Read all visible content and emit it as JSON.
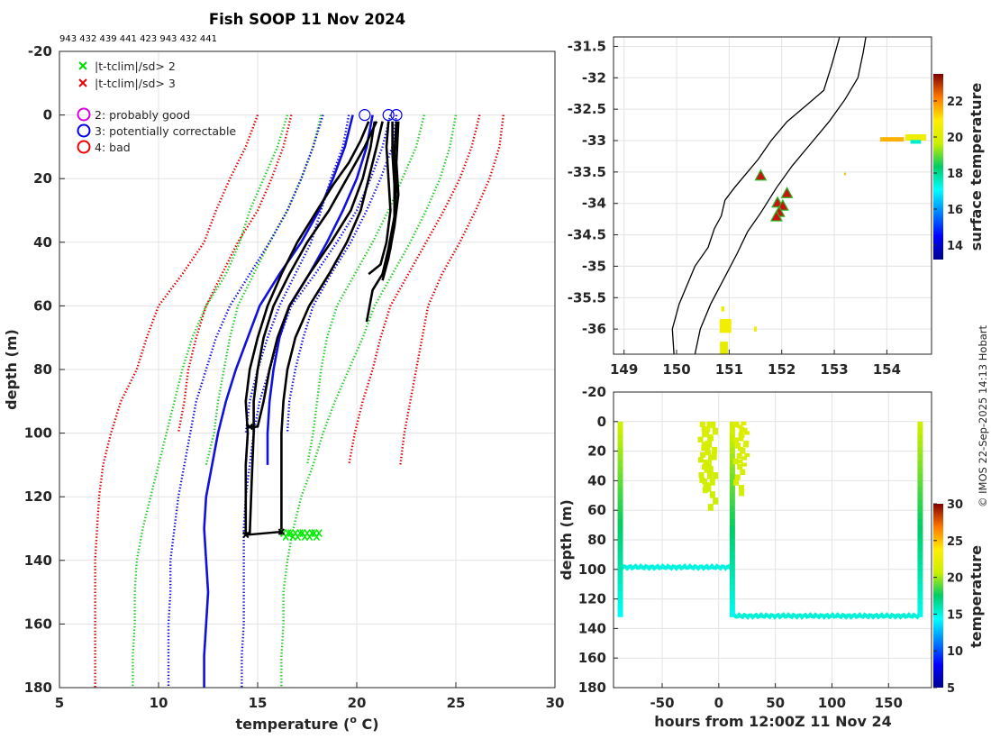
{
  "chart_data": [
    {
      "type": "line",
      "title": "Fish SOOP 11 Nov 2024",
      "subtitle": "943 432 439 441 423 943 432 441",
      "xlabel": "temperature (",
      "xlabel_sup": "o",
      "xlabel_end": " C)",
      "ylabel": "depth (m)",
      "xlim": [
        5,
        30
      ],
      "ylim": [
        -20,
        180
      ],
      "y_reversed": true,
      "xticks": [
        5,
        10,
        15,
        20,
        25,
        30
      ],
      "yticks": [
        -20,
        0,
        20,
        40,
        60,
        80,
        100,
        120,
        140,
        160,
        180
      ],
      "grid": true,
      "legend": [
        {
          "marker": "x",
          "color": "#00dd00",
          "label": "|t-tclim|/sd> 2"
        },
        {
          "marker": "x",
          "color": "#ee0000",
          "label": "|t-tclim|/sd> 3"
        },
        {
          "marker": "o",
          "color": "#dd00dd",
          "label": "2: probably good"
        },
        {
          "marker": "o",
          "color": "#0000ee",
          "label": "3: potentially correctable"
        },
        {
          "marker": "o",
          "color": "#ee0000",
          "label": "4: bad"
        }
      ],
      "climatology_depth": [
        0,
        10,
        20,
        30,
        40,
        50,
        60,
        70,
        80,
        90,
        100,
        110,
        120,
        130,
        140,
        150,
        160,
        170,
        180
      ],
      "climatology_series": [
        {
          "name": "clim -3sd A",
          "color": "#dd0000",
          "style": "dotted",
          "temps": [
            16.7,
            16.3,
            15.7,
            15.0,
            14.0,
            13.2,
            12.4,
            11.9,
            11.5,
            11.3,
            11.0
          ]
        },
        {
          "name": "clim -3sd B",
          "color": "#dd0000",
          "style": "dotted",
          "temps": [
            15.0,
            14.4,
            13.6,
            12.9,
            12.3,
            11.2,
            10.0,
            9.4,
            8.9,
            8.1,
            7.6,
            7.2,
            7.0,
            6.9,
            6.8,
            6.8,
            6.8,
            6.8,
            6.8
          ]
        },
        {
          "name": "clim -2sd A",
          "color": "#22cc22",
          "style": "dotted",
          "temps": [
            18.2,
            17.8,
            17.2,
            16.5,
            15.6,
            14.8,
            14.0,
            13.6,
            13.3,
            13.0,
            12.8,
            12.4
          ]
        },
        {
          "name": "clim -2sd B",
          "color": "#22cc22",
          "style": "dotted",
          "temps": [
            16.5,
            16.0,
            15.3,
            14.6,
            14.1,
            13.4,
            12.4,
            11.7,
            11.2,
            10.8,
            10.4,
            10.0,
            9.6,
            9.2,
            8.9,
            8.8,
            8.8,
            8.7,
            8.7
          ]
        },
        {
          "name": "clim -sd A",
          "color": "#1111dd",
          "style": "dotted",
          "temps": [
            19.6,
            19.3,
            18.7,
            18.2,
            17.7,
            16.9,
            16.1,
            15.5,
            15.0,
            14.6,
            14.4
          ]
        },
        {
          "name": "clim -sd B",
          "color": "#1111dd",
          "style": "dotted",
          "temps": [
            18.3,
            17.8,
            17.2,
            16.5,
            15.6,
            14.6,
            13.6,
            12.9,
            12.4,
            11.9,
            11.6,
            11.3,
            11.0,
            10.8,
            10.6,
            10.6,
            10.5,
            10.5,
            10.5
          ]
        },
        {
          "name": "clim mean A",
          "color": "#1111dd",
          "style": "solid",
          "temps": [
            20.8,
            20.5,
            20.0,
            19.3,
            18.5,
            17.6,
            16.6,
            16.1,
            15.8,
            15.6,
            15.5,
            15.5
          ]
        },
        {
          "name": "clim mean B",
          "color": "#1111dd",
          "style": "solid",
          "temps": [
            19.8,
            19.4,
            18.8,
            18.1,
            17.2,
            16.1,
            15.1,
            14.5,
            13.9,
            13.4,
            13.0,
            12.7,
            12.4,
            12.3,
            12.4,
            12.5,
            12.4,
            12.3,
            12.3
          ]
        },
        {
          "name": "clim +sd A",
          "color": "#1111dd",
          "style": "dotted",
          "temps": [
            22.0,
            21.8,
            21.2,
            20.5,
            19.7,
            18.7,
            17.8,
            17.3,
            16.9,
            16.6,
            16.5
          ]
        },
        {
          "name": "clim +sd B",
          "color": "#1111dd",
          "style": "dotted",
          "temps": [
            21.7,
            21.3,
            20.7,
            20.0,
            19.0,
            17.9,
            16.7,
            16.1,
            15.6,
            15.1,
            14.8,
            14.6,
            14.4,
            14.3,
            14.3,
            14.3,
            14.3,
            14.2,
            14.2
          ]
        },
        {
          "name": "clim +2sd A",
          "color": "#22cc22",
          "style": "dotted",
          "temps": [
            23.4,
            23.0,
            22.3,
            21.6,
            20.8,
            19.9,
            19.0,
            18.5,
            18.2,
            18.0,
            17.8,
            17.5
          ]
        },
        {
          "name": "clim +2sd B",
          "color": "#22cc22",
          "style": "dotted",
          "temps": [
            25.0,
            24.7,
            24.2,
            23.5,
            22.7,
            21.8,
            20.9,
            20.3,
            19.6,
            18.9,
            18.3,
            17.8,
            17.2,
            16.8,
            16.5,
            16.3,
            16.3,
            16.2,
            16.2
          ]
        },
        {
          "name": "clim +3sd A",
          "color": "#dd0000",
          "style": "dotted",
          "temps": [
            26.2,
            25.8,
            25.2,
            24.4,
            23.5,
            22.6,
            21.7,
            21.2,
            20.8,
            20.3,
            19.9,
            19.6
          ]
        },
        {
          "name": "clim +3sd B",
          "color": "#dd0000",
          "style": "dotted",
          "temps": [
            27.4,
            27.2,
            26.7,
            26.0,
            25.2,
            24.3,
            23.6,
            23.3,
            23.0,
            22.7,
            22.4,
            22.2
          ]
        }
      ],
      "profile_series": [
        {
          "name": "profile 1",
          "color": "#000000",
          "points": [
            [
              20.6,
              2
            ],
            [
              20.2,
              8
            ],
            [
              19.6,
              15
            ],
            [
              18.8,
              22
            ],
            [
              18.0,
              30
            ],
            [
              17.0,
              40
            ],
            [
              16.2,
              50
            ],
            [
              15.5,
              60
            ],
            [
              15.0,
              70
            ],
            [
              14.6,
              80
            ],
            [
              14.4,
              90
            ],
            [
              14.5,
              100
            ],
            [
              14.4,
              110
            ],
            [
              14.4,
              120
            ],
            [
              14.4,
              132
            ]
          ]
        },
        {
          "name": "profile 2",
          "color": "#000000",
          "points": [
            [
              21.0,
              2
            ],
            [
              20.4,
              10
            ],
            [
              19.5,
              20
            ],
            [
              18.6,
              30
            ],
            [
              17.5,
              40
            ],
            [
              16.6,
              50
            ],
            [
              15.8,
              60
            ],
            [
              15.3,
              70
            ],
            [
              15.0,
              80
            ],
            [
              14.8,
              90
            ],
            [
              14.8,
              100
            ],
            [
              14.7,
              115
            ],
            [
              14.6,
              132
            ]
          ]
        },
        {
          "name": "profile 3",
          "color": "#000000",
          "points": [
            [
              20.9,
              2
            ],
            [
              20.7,
              10
            ],
            [
              20.3,
              20
            ],
            [
              19.7,
              30
            ],
            [
              18.7,
              40
            ],
            [
              17.6,
              50
            ],
            [
              16.6,
              60
            ],
            [
              16.0,
              70
            ],
            [
              15.6,
              80
            ],
            [
              15.3,
              90
            ],
            [
              15.0,
              98
            ],
            [
              14.5,
              98
            ]
          ]
        },
        {
          "name": "profile 4",
          "color": "#000000",
          "points": [
            [
              21.3,
              2
            ],
            [
              21.0,
              10
            ],
            [
              20.6,
              20
            ],
            [
              20.2,
              30
            ],
            [
              19.5,
              40
            ],
            [
              18.6,
              50
            ],
            [
              17.6,
              60
            ],
            [
              16.9,
              70
            ],
            [
              16.5,
              80
            ],
            [
              16.3,
              90
            ],
            [
              16.2,
              100
            ],
            [
              16.2,
              115
            ],
            [
              16.2,
              132
            ]
          ]
        },
        {
          "name": "profile 5",
          "color": "#000000",
          "points": [
            [
              21.6,
              2
            ],
            [
              21.5,
              10
            ],
            [
              21.6,
              20
            ],
            [
              21.7,
              30
            ],
            [
              21.5,
              40
            ],
            [
              21.2,
              47
            ],
            [
              20.6,
              50
            ]
          ]
        },
        {
          "name": "profile 6",
          "color": "#000000",
          "points": [
            [
              21.8,
              2
            ],
            [
              21.8,
              12
            ],
            [
              21.9,
              22
            ],
            [
              21.9,
              32
            ],
            [
              21.7,
              42
            ],
            [
              21.3,
              50
            ],
            [
              20.8,
              55
            ],
            [
              20.5,
              65
            ]
          ]
        },
        {
          "name": "profile 7",
          "color": "#000000",
          "points": [
            [
              22.0,
              2
            ],
            [
              21.9,
              12
            ],
            [
              22.0,
              22
            ],
            [
              21.9,
              32
            ],
            [
              21.6,
              42
            ],
            [
              21.3,
              50
            ]
          ]
        },
        {
          "name": "profile 8",
          "color": "#000000",
          "points": [
            [
              22.1,
              2
            ],
            [
              22.0,
              15
            ],
            [
              22.1,
              25
            ],
            [
              21.9,
              35
            ],
            [
              21.6,
              45
            ],
            [
              21.3,
              52
            ]
          ]
        }
      ],
      "flag_circles": [
        [
          20.4,
          0
        ],
        [
          21.6,
          0
        ],
        [
          22.0,
          0
        ]
      ],
      "qc_mark_band": {
        "temp_range": [
          16.3,
          18.2
        ],
        "depth": 132,
        "color": "#00ee00"
      }
    },
    {
      "type": "map",
      "xlim": [
        148.8,
        154.85
      ],
      "ylim": [
        -36.4,
        -31.35
      ],
      "xticks": [
        149,
        150,
        151,
        152,
        153,
        154
      ],
      "yticks": [
        -31.5,
        -32,
        -32.5,
        -33,
        -33.5,
        -34,
        -34.5,
        -35,
        -35.5,
        -36
      ],
      "grid": true,
      "colorbar": {
        "label": "surface temperature",
        "range": [
          13.2,
          23.5
        ],
        "ticks": [
          14,
          16,
          18,
          20,
          22
        ]
      },
      "coastline": [
        [
          149.95,
          -36.4
        ],
        [
          149.92,
          -36.0
        ],
        [
          150.05,
          -35.6
        ],
        [
          150.2,
          -35.3
        ],
        [
          150.35,
          -35.0
        ],
        [
          150.6,
          -34.7
        ],
        [
          150.72,
          -34.4
        ],
        [
          150.85,
          -34.2
        ],
        [
          150.92,
          -33.95
        ],
        [
          151.1,
          -33.75
        ],
        [
          151.3,
          -33.55
        ],
        [
          151.55,
          -33.3
        ],
        [
          151.8,
          -33.0
        ],
        [
          152.1,
          -32.7
        ],
        [
          152.45,
          -32.45
        ],
        [
          152.8,
          -32.2
        ],
        [
          152.95,
          -31.8
        ],
        [
          153.05,
          -31.5
        ],
        [
          153.1,
          -31.35
        ]
      ],
      "shelf_contour": [
        [
          150.35,
          -36.4
        ],
        [
          150.45,
          -36.0
        ],
        [
          150.65,
          -35.6
        ],
        [
          150.9,
          -35.2
        ],
        [
          151.15,
          -34.8
        ],
        [
          151.35,
          -34.45
        ],
        [
          151.6,
          -34.15
        ],
        [
          151.9,
          -33.75
        ],
        [
          152.2,
          -33.4
        ],
        [
          152.55,
          -33.05
        ],
        [
          152.9,
          -32.7
        ],
        [
          153.2,
          -32.35
        ],
        [
          153.45,
          -32.0
        ],
        [
          153.55,
          -31.6
        ],
        [
          153.6,
          -31.35
        ]
      ],
      "sst_patches": [
        {
          "lon": 154.1,
          "lat": -32.98,
          "value": 21.6,
          "w": 0.45,
          "h": 0.07
        },
        {
          "lon": 154.55,
          "lat": -32.95,
          "value": 20.5,
          "w": 0.4,
          "h": 0.1
        },
        {
          "lon": 154.55,
          "lat": -33.02,
          "value": 17.5,
          "w": 0.2,
          "h": 0.06
        },
        {
          "lon": 150.93,
          "lat": -35.95,
          "value": 20.6,
          "w": 0.22,
          "h": 0.22
        },
        {
          "lon": 150.9,
          "lat": -36.3,
          "value": 20.3,
          "w": 0.15,
          "h": 0.2
        },
        {
          "lon": 150.88,
          "lat": -35.68,
          "value": 20.4,
          "w": 0.06,
          "h": 0.08
        },
        {
          "lon": 151.5,
          "lat": -36.0,
          "value": 20.6,
          "w": 0.05,
          "h": 0.08
        },
        {
          "lon": 153.2,
          "lat": -33.53,
          "value": 21.5,
          "w": 0.03,
          "h": 0.04
        }
      ],
      "stations": [
        [
          151.6,
          -33.57
        ],
        [
          152.1,
          -33.85
        ],
        [
          151.92,
          -34.0
        ],
        [
          152.02,
          -34.05
        ],
        [
          151.95,
          -34.15
        ],
        [
          151.9,
          -34.22
        ]
      ]
    },
    {
      "type": "heatmap",
      "xlabel": "hours from 12:00Z 11 Nov 24",
      "ylabel": "depth (m)",
      "xlim": [
        -93,
        188
      ],
      "ylim": [
        -20,
        180
      ],
      "y_reversed": true,
      "xticks": [
        -50,
        0,
        50,
        100,
        150
      ],
      "yticks": [
        -20,
        0,
        20,
        40,
        60,
        80,
        100,
        120,
        140,
        160,
        180
      ],
      "grid": true,
      "colorbar": {
        "label": "temperature",
        "range": [
          5,
          30
        ],
        "ticks": [
          5,
          10,
          15,
          20,
          25,
          30
        ]
      },
      "profiles": [
        {
          "hour": -87,
          "max_depth": 132,
          "t_surface": 20.8,
          "t_bottom": 14.4
        },
        {
          "hour": 12,
          "max_depth": 132,
          "t_surface": 21.0,
          "t_bottom": 14.5
        },
        {
          "hour": 178,
          "max_depth": 132,
          "t_surface": 20.7,
          "t_bottom": 14.6
        }
      ],
      "short_profiles": [
        {
          "hour": -13,
          "max_depth": 48,
          "t": 21.5
        },
        {
          "hour": -10,
          "max_depth": 45,
          "t": 21.6
        },
        {
          "hour": -6,
          "max_depth": 60,
          "t": 21.3
        },
        {
          "hour": 18,
          "max_depth": 50,
          "t": 21.7
        },
        {
          "hour": 22,
          "max_depth": 30,
          "t": 21.8
        }
      ],
      "bottom_tracks": [
        {
          "from": -87,
          "to": 12,
          "depth": 98.5,
          "t": 15.0
        },
        {
          "from": 12,
          "to": 178,
          "depth": 131.5,
          "t": 15.2
        }
      ]
    }
  ],
  "footer": {
    "credit": "© IMOS 22-Sep-2025 14:13 Hobart"
  }
}
